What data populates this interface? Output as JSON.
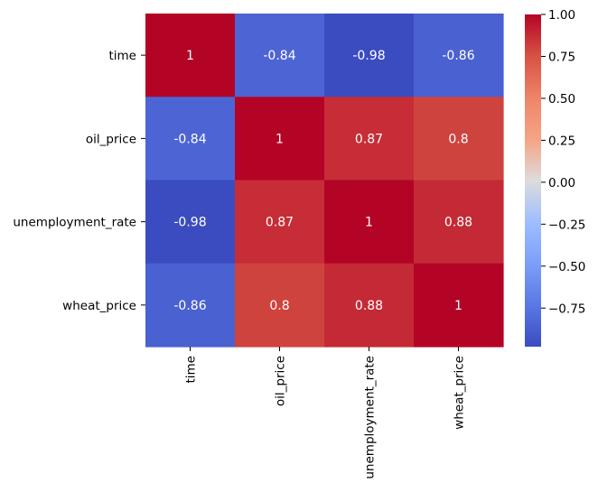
{
  "chart_data": {
    "type": "heatmap",
    "title": "",
    "xlabel": "",
    "ylabel": "",
    "x_categories": [
      "time",
      "oil_price",
      "unemployment_rate",
      "wheat_price"
    ],
    "y_categories": [
      "time",
      "oil_price",
      "unemployment_rate",
      "wheat_price"
    ],
    "values": [
      [
        1,
        -0.84,
        -0.98,
        -0.86
      ],
      [
        -0.84,
        1,
        0.87,
        0.8
      ],
      [
        -0.98,
        0.87,
        1,
        0.88
      ],
      [
        -0.86,
        0.8,
        0.88,
        1
      ]
    ],
    "cell_labels": [
      [
        "1",
        "-0.84",
        "-0.98",
        "-0.86"
      ],
      [
        "-0.84",
        "1",
        "0.87",
        "0.8"
      ],
      [
        "-0.98",
        "0.87",
        "1",
        "0.88"
      ],
      [
        "-0.86",
        "0.8",
        "0.88",
        "1"
      ]
    ],
    "colormap": "coolwarm",
    "colorbar": {
      "range": [
        -0.98,
        1.0
      ],
      "ticks": [
        1.0,
        0.75,
        0.5,
        0.25,
        0.0,
        -0.25,
        -0.5,
        -0.75
      ],
      "tick_labels": [
        "1.00",
        "0.75",
        "0.50",
        "0.25",
        "0.00",
        "−0.25",
        "−0.50",
        "−0.75"
      ]
    },
    "grid": false,
    "legend": "colorbar-right"
  }
}
